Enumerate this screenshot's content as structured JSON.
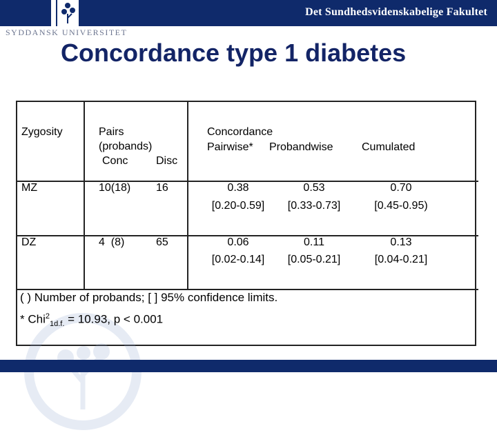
{
  "header": {
    "faculty": "Det Sundhedsvidenskabelige Fakultet",
    "university": "SYDDANSK UNIVERSITET"
  },
  "title": "Concordance type 1 diabetes",
  "table": {
    "col_zygosity": "Zygosity",
    "col_pairs": "Pairs",
    "col_probands": "(probands)",
    "col_conc": "Conc",
    "col_disc": "Disc",
    "col_concordance": "Concordance",
    "col_pairwise": "Pairwise*",
    "col_probandwise": "Probandwise",
    "col_cumulated": "Cumulated",
    "rows": [
      {
        "zygosity": "MZ",
        "conc": "10(18)",
        "disc": "16",
        "pairwise": "0.38",
        "pairwise_ci": "[0.20-0.59]",
        "probandwise": "0.53",
        "probandwise_ci": "[0.33-0.73]",
        "cumulated": "0.70",
        "cumulated_ci": "[0.45-0.95)"
      },
      {
        "zygosity": "DZ",
        "conc": "4  (8)",
        "disc": "65",
        "pairwise": "0.06",
        "pairwise_ci": "[0.02-0.14]",
        "probandwise": "0.11",
        "probandwise_ci": "[0.05-0.21]",
        "cumulated": "0.13",
        "cumulated_ci": "[0.04-0.21]"
      }
    ]
  },
  "footnotes": {
    "line1": "( ) Number of probands; [ ] 95% confidence limits.",
    "line2_prefix": "* Chi",
    "line2_sup": "2",
    "line2_sub": "1d.f.",
    "line2_suffix": " = 10.93, p < 0.001"
  },
  "colors": {
    "brand_blue": "#0f2a6b",
    "title_blue": "#132466"
  }
}
